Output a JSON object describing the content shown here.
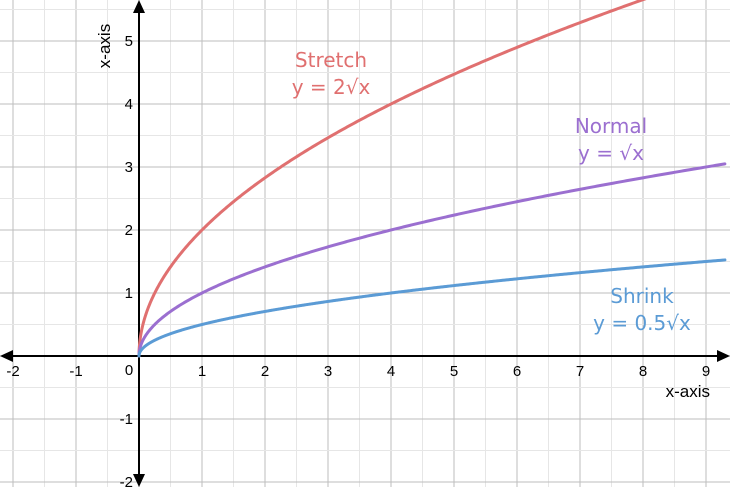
{
  "chart_data": {
    "type": "line",
    "xlabel": "x-axis",
    "ylabel": "x-axis",
    "origin_label": "0",
    "xlim": [
      -2.2,
      9.3
    ],
    "ylim": [
      -2.1,
      5.55
    ],
    "x_ticks": [
      -2,
      -1,
      1,
      2,
      3,
      4,
      5,
      6,
      7,
      8,
      9
    ],
    "y_ticks": [
      -2,
      -1,
      1,
      2,
      3,
      4,
      5
    ],
    "grid": true,
    "series": [
      {
        "id": "stretch",
        "name": "Stretch",
        "equation": "y = 2√x",
        "function": "2*sqrt(x)",
        "coefficient": 2,
        "color": "#e07070",
        "x": [
          0,
          0.25,
          0.5,
          1,
          2,
          3,
          4,
          5,
          6,
          7,
          8
        ],
        "y": [
          0,
          1,
          1.414,
          2,
          2.828,
          3.464,
          4,
          4.472,
          4.899,
          5.292,
          5.657
        ]
      },
      {
        "id": "normal",
        "name": "Normal",
        "equation": "y = √x",
        "function": "sqrt(x)",
        "coefficient": 1,
        "color": "#9b6fd0",
        "x": [
          0,
          0.25,
          0.5,
          1,
          2,
          3,
          4,
          5,
          6,
          7,
          8,
          9
        ],
        "y": [
          0,
          0.5,
          0.707,
          1,
          1.414,
          1.732,
          2,
          2.236,
          2.449,
          2.646,
          2.828,
          3
        ]
      },
      {
        "id": "shrink",
        "name": "Shrink",
        "equation": "y = 0.5√x",
        "function": "0.5*sqrt(x)",
        "coefficient": 0.5,
        "color": "#5b9bd5",
        "x": [
          0,
          0.25,
          0.5,
          1,
          2,
          3,
          4,
          5,
          6,
          7,
          8,
          9
        ],
        "y": [
          0,
          0.25,
          0.354,
          0.5,
          0.707,
          0.866,
          1,
          1.118,
          1.225,
          1.323,
          1.414,
          1.5
        ]
      }
    ]
  }
}
